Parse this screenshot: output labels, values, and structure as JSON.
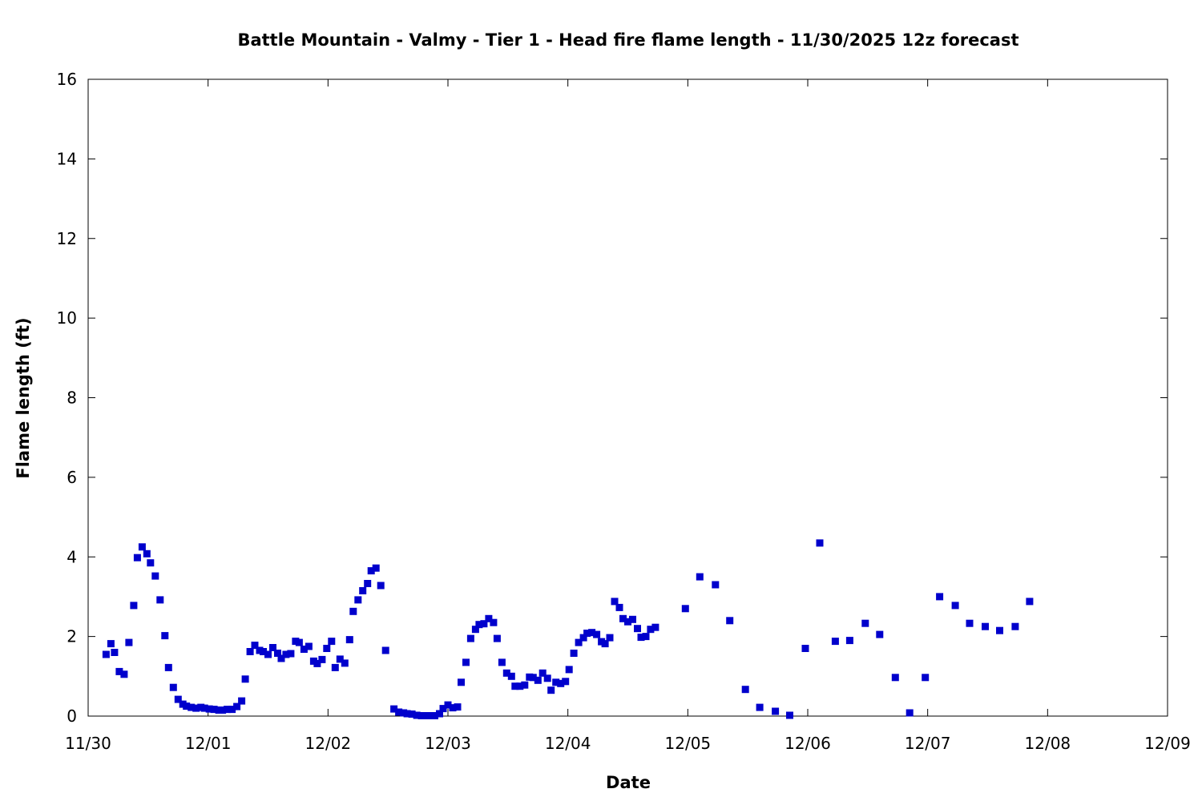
{
  "chart_data": {
    "type": "scatter",
    "title": "Battle Mountain - Valmy - Tier 1 - Head fire flame length - 11/30/2025 12z forecast",
    "xlabel": "Date",
    "ylabel": "Flame length (ft)",
    "x_unit": "days",
    "xlim": [
      0,
      9
    ],
    "ylim": [
      0,
      16
    ],
    "x_tick_labels": [
      "11/30",
      "12/01",
      "12/02",
      "12/03",
      "12/04",
      "12/05",
      "12/06",
      "12/07",
      "12/08",
      "12/09"
    ],
    "y_ticks": [
      0,
      2,
      4,
      6,
      8,
      10,
      12,
      14,
      16
    ],
    "grid": false,
    "legend": "none",
    "marker_color": "#0000cc",
    "series": [
      {
        "points": [
          [
            0.15,
            1.55
          ],
          [
            0.19,
            1.82
          ],
          [
            0.22,
            1.6
          ],
          [
            0.26,
            1.12
          ],
          [
            0.3,
            1.05
          ],
          [
            0.34,
            1.85
          ],
          [
            0.38,
            2.78
          ],
          [
            0.41,
            3.98
          ],
          [
            0.45,
            4.25
          ],
          [
            0.49,
            4.08
          ],
          [
            0.52,
            3.85
          ],
          [
            0.56,
            3.52
          ],
          [
            0.6,
            2.92
          ],
          [
            0.64,
            2.02
          ],
          [
            0.67,
            1.22
          ],
          [
            0.71,
            0.72
          ],
          [
            0.75,
            0.42
          ],
          [
            0.79,
            0.3
          ],
          [
            0.82,
            0.25
          ],
          [
            0.86,
            0.22
          ],
          [
            0.9,
            0.2
          ],
          [
            0.94,
            0.22
          ],
          [
            0.97,
            0.2
          ],
          [
            1.01,
            0.18
          ],
          [
            1.05,
            0.17
          ],
          [
            1.09,
            0.15
          ],
          [
            1.12,
            0.15
          ],
          [
            1.16,
            0.17
          ],
          [
            1.2,
            0.17
          ],
          [
            1.24,
            0.24
          ],
          [
            1.28,
            0.38
          ],
          [
            1.31,
            0.93
          ],
          [
            1.35,
            1.62
          ],
          [
            1.39,
            1.78
          ],
          [
            1.43,
            1.65
          ],
          [
            1.46,
            1.62
          ],
          [
            1.5,
            1.55
          ],
          [
            1.54,
            1.72
          ],
          [
            1.58,
            1.58
          ],
          [
            1.61,
            1.45
          ],
          [
            1.65,
            1.55
          ],
          [
            1.69,
            1.57
          ],
          [
            1.73,
            1.88
          ],
          [
            1.76,
            1.85
          ],
          [
            1.8,
            1.68
          ],
          [
            1.84,
            1.75
          ],
          [
            1.88,
            1.38
          ],
          [
            1.91,
            1.32
          ],
          [
            1.95,
            1.42
          ],
          [
            1.99,
            1.7
          ],
          [
            2.03,
            1.88
          ],
          [
            2.06,
            1.22
          ],
          [
            2.1,
            1.43
          ],
          [
            2.14,
            1.33
          ],
          [
            2.18,
            1.92
          ],
          [
            2.21,
            2.63
          ],
          [
            2.25,
            2.92
          ],
          [
            2.29,
            3.15
          ],
          [
            2.33,
            3.33
          ],
          [
            2.36,
            3.65
          ],
          [
            2.4,
            3.72
          ],
          [
            2.44,
            3.28
          ],
          [
            2.48,
            1.65
          ],
          [
            2.55,
            0.18
          ],
          [
            2.59,
            0.1
          ],
          [
            2.63,
            0.08
          ],
          [
            2.66,
            0.06
          ],
          [
            2.7,
            0.05
          ],
          [
            2.74,
            0.02
          ],
          [
            2.78,
            0.01
          ],
          [
            2.81,
            0.01
          ],
          [
            2.85,
            0.01
          ],
          [
            2.89,
            0.01
          ],
          [
            2.93,
            0.06
          ],
          [
            2.96,
            0.19
          ],
          [
            3.0,
            0.28
          ],
          [
            3.04,
            0.21
          ],
          [
            3.08,
            0.23
          ],
          [
            3.11,
            0.85
          ],
          [
            3.15,
            1.35
          ],
          [
            3.19,
            1.95
          ],
          [
            3.23,
            2.18
          ],
          [
            3.26,
            2.3
          ],
          [
            3.3,
            2.32
          ],
          [
            3.34,
            2.45
          ],
          [
            3.38,
            2.35
          ],
          [
            3.41,
            1.95
          ],
          [
            3.45,
            1.35
          ],
          [
            3.49,
            1.08
          ],
          [
            3.53,
            1.0
          ],
          [
            3.56,
            0.75
          ],
          [
            3.6,
            0.75
          ],
          [
            3.64,
            0.78
          ],
          [
            3.68,
            0.98
          ],
          [
            3.71,
            0.97
          ],
          [
            3.75,
            0.9
          ],
          [
            3.79,
            1.08
          ],
          [
            3.83,
            0.95
          ],
          [
            3.86,
            0.65
          ],
          [
            3.9,
            0.85
          ],
          [
            3.94,
            0.82
          ],
          [
            3.98,
            0.87
          ],
          [
            4.01,
            1.17
          ],
          [
            4.05,
            1.58
          ],
          [
            4.09,
            1.85
          ],
          [
            4.13,
            1.97
          ],
          [
            4.16,
            2.08
          ],
          [
            4.2,
            2.1
          ],
          [
            4.24,
            2.05
          ],
          [
            4.28,
            1.87
          ],
          [
            4.31,
            1.82
          ],
          [
            4.35,
            1.97
          ],
          [
            4.39,
            2.88
          ],
          [
            4.43,
            2.73
          ],
          [
            4.46,
            2.45
          ],
          [
            4.5,
            2.37
          ],
          [
            4.54,
            2.43
          ],
          [
            4.58,
            2.2
          ],
          [
            4.61,
            1.98
          ],
          [
            4.65,
            2.0
          ],
          [
            4.69,
            2.18
          ],
          [
            4.73,
            2.23
          ],
          [
            4.98,
            2.7
          ],
          [
            5.1,
            3.5
          ],
          [
            5.23,
            3.3
          ],
          [
            5.35,
            2.4
          ],
          [
            5.48,
            0.67
          ],
          [
            5.6,
            0.22
          ],
          [
            5.73,
            0.12
          ],
          [
            5.85,
            0.02
          ],
          [
            5.98,
            1.7
          ],
          [
            6.1,
            4.35
          ],
          [
            6.23,
            1.88
          ],
          [
            6.35,
            1.9
          ],
          [
            6.48,
            2.33
          ],
          [
            6.6,
            2.05
          ],
          [
            6.73,
            0.97
          ],
          [
            6.85,
            0.08
          ],
          [
            6.98,
            0.97
          ],
          [
            7.1,
            3.0
          ],
          [
            7.23,
            2.78
          ],
          [
            7.35,
            2.33
          ],
          [
            7.48,
            2.25
          ],
          [
            7.6,
            2.15
          ],
          [
            7.73,
            2.25
          ],
          [
            7.85,
            2.88
          ]
        ]
      }
    ]
  }
}
